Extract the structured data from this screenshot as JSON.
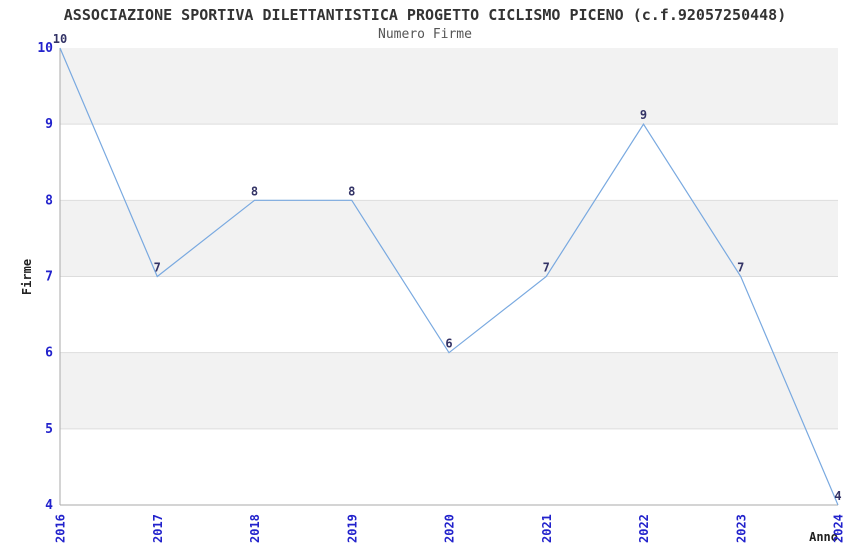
{
  "chart_data": {
    "type": "line",
    "title": "ASSOCIAZIONE SPORTIVA DILETTANTISTICA PROGETTO CICLISMO PICENO (c.f.92057250448)",
    "subtitle": "Numero Firme",
    "xlabel": "Anno",
    "ylabel": "Firme",
    "categories": [
      "2016",
      "2017",
      "2018",
      "2019",
      "2020",
      "2021",
      "2022",
      "2023",
      "2024"
    ],
    "values": [
      10,
      7,
      8,
      8,
      6,
      7,
      9,
      7,
      4
    ],
    "ylim": [
      4,
      10
    ],
    "yticks": [
      4,
      5,
      6,
      7,
      8,
      9,
      10
    ],
    "grid": true,
    "legend": "none",
    "value_labels_shown": true,
    "colors": {
      "background": "#ffffff",
      "band": "#f2f2f2",
      "gridline": "#dddddd",
      "axis": "#aaaaaa",
      "line": "#79a9e0",
      "tick_label": "#2222cc",
      "value_label": "#333366",
      "title": "#333333",
      "subtitle": "#555555",
      "axis_label": "#222222"
    }
  }
}
